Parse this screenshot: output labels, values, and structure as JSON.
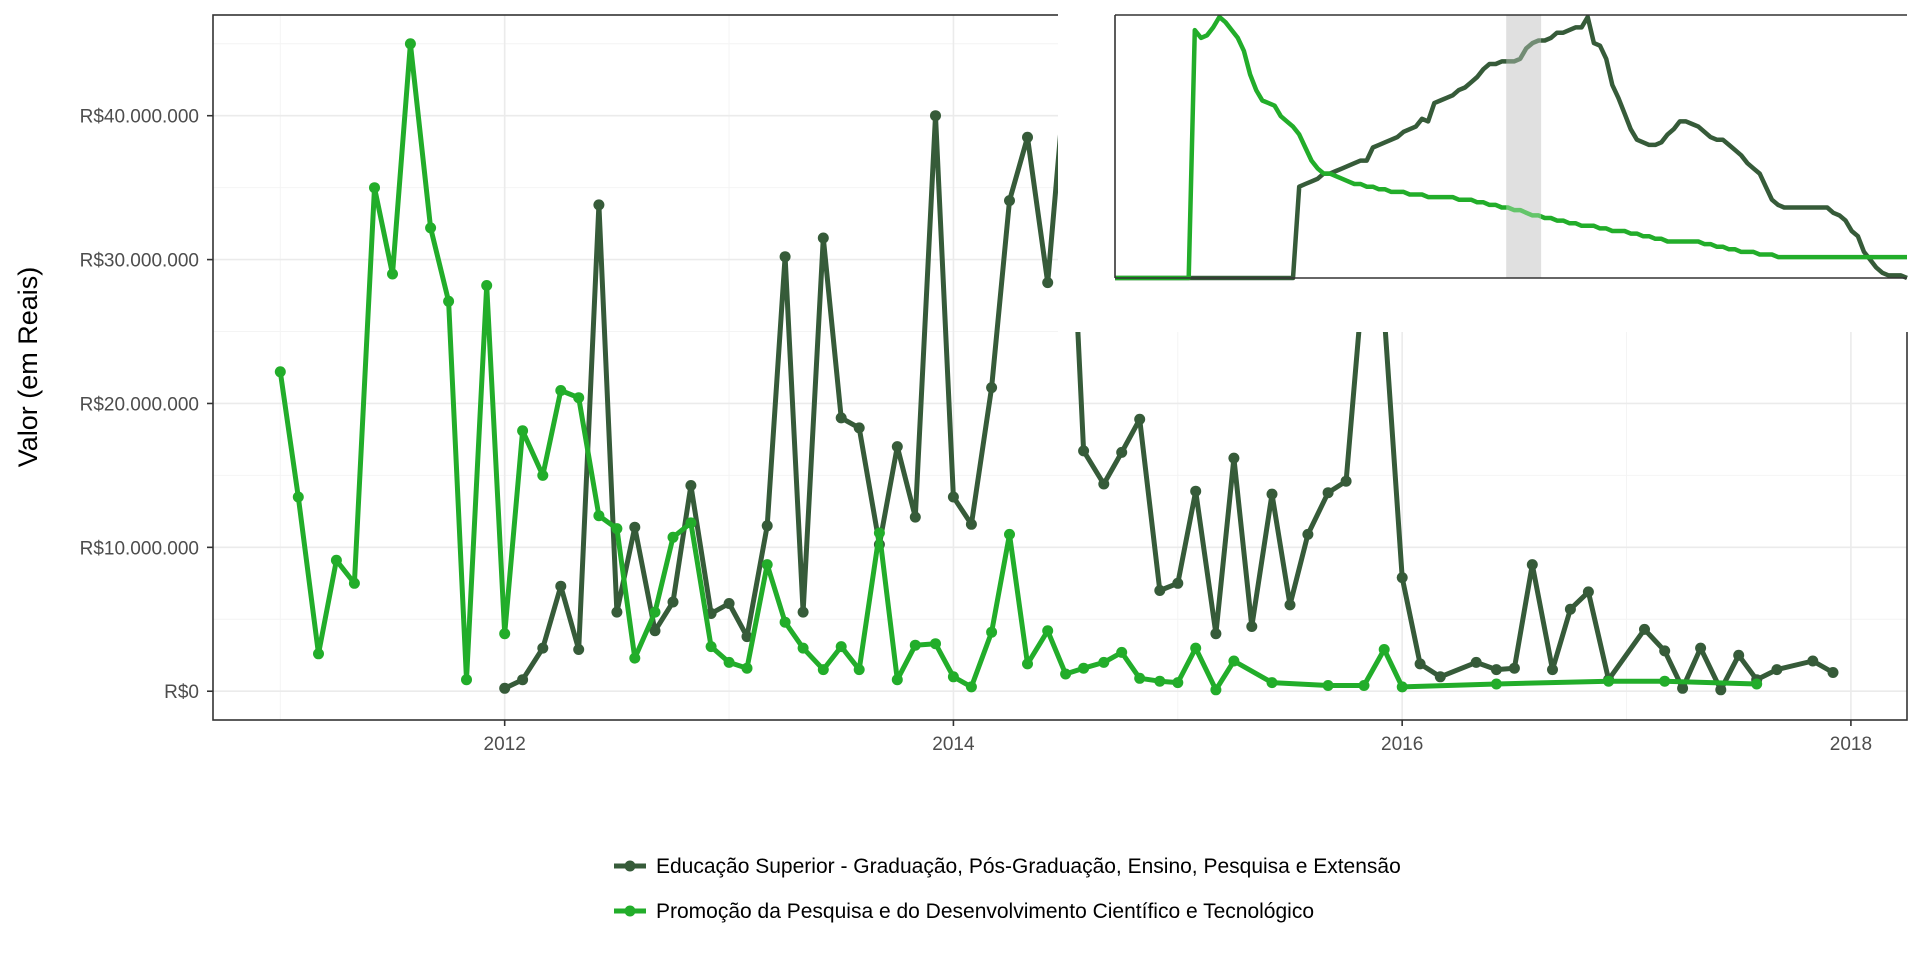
{
  "chart_data": [
    {
      "type": "line",
      "title": "",
      "xlabel": "",
      "ylabel": "Valor (em Reais)",
      "x_tick_labels": [
        "2012",
        "2014",
        "2016",
        "2018"
      ],
      "x_tick_dates": [
        2012.0,
        2014.0,
        2016.0,
        2018.0
      ],
      "y_tick_labels": [
        "R$0",
        "R$10.000.000",
        "R$20.000.000",
        "R$30.000.000",
        "R$40.000.000"
      ],
      "y_tick_values": [
        0,
        10000000,
        20000000,
        30000000,
        40000000
      ],
      "xlim": [
        2010.7,
        2018.25
      ],
      "ylim": [
        -2000000,
        47000000
      ],
      "grid": true,
      "legend_position": "bottom",
      "series": [
        {
          "name": "Educação Superior - Graduação, Pós-Graduação, Ensino, Pesquisa e Extensão",
          "color": "#365b39",
          "points": [
            [
              2012.0,
              200000
            ],
            [
              2012.08,
              800000
            ],
            [
              2012.17,
              3000000
            ],
            [
              2012.25,
              7300000
            ],
            [
              2012.33,
              2900000
            ],
            [
              2012.42,
              33800000
            ],
            [
              2012.5,
              5500000
            ],
            [
              2012.58,
              11400000
            ],
            [
              2012.67,
              4200000
            ],
            [
              2012.75,
              6200000
            ],
            [
              2012.83,
              14300000
            ],
            [
              2012.92,
              5400000
            ],
            [
              2013.0,
              6100000
            ],
            [
              2013.08,
              3800000
            ],
            [
              2013.17,
              11500000
            ],
            [
              2013.25,
              30200000
            ],
            [
              2013.33,
              5500000
            ],
            [
              2013.42,
              31500000
            ],
            [
              2013.5,
              19000000
            ],
            [
              2013.58,
              18300000
            ],
            [
              2013.67,
              10200000
            ],
            [
              2013.75,
              17000000
            ],
            [
              2013.83,
              12100000
            ],
            [
              2013.92,
              40000000
            ],
            [
              2014.0,
              13500000
            ],
            [
              2014.08,
              11600000
            ],
            [
              2014.17,
              21100000
            ],
            [
              2014.25,
              34100000
            ],
            [
              2014.33,
              38500000
            ],
            [
              2014.42,
              28400000
            ],
            [
              2014.5,
              42800000
            ],
            [
              2014.58,
              16700000
            ],
            [
              2014.67,
              14400000
            ],
            [
              2014.75,
              16600000
            ],
            [
              2014.83,
              18900000
            ],
            [
              2014.92,
              7000000
            ],
            [
              2015.0,
              7500000
            ],
            [
              2015.08,
              13900000
            ],
            [
              2015.17,
              4000000
            ],
            [
              2015.25,
              16200000
            ],
            [
              2015.33,
              4500000
            ],
            [
              2015.42,
              13700000
            ],
            [
              2015.5,
              6000000
            ],
            [
              2015.58,
              10900000
            ],
            [
              2015.67,
              13800000
            ],
            [
              2015.75,
              14600000
            ],
            [
              2015.83,
              29200000
            ],
            [
              2015.92,
              26200000
            ],
            [
              2016.0,
              7900000
            ],
            [
              2016.08,
              1900000
            ],
            [
              2016.17,
              1000000
            ],
            [
              2016.33,
              2000000
            ],
            [
              2016.42,
              1500000
            ],
            [
              2016.5,
              1600000
            ],
            [
              2016.58,
              8800000
            ],
            [
              2016.67,
              1500000
            ],
            [
              2016.75,
              5700000
            ],
            [
              2016.83,
              6900000
            ],
            [
              2016.92,
              800000
            ],
            [
              2017.08,
              4300000
            ],
            [
              2017.17,
              2800000
            ],
            [
              2017.25,
              200000
            ],
            [
              2017.33,
              3000000
            ],
            [
              2017.42,
              100000
            ],
            [
              2017.5,
              2500000
            ],
            [
              2017.58,
              800000
            ],
            [
              2017.67,
              1500000
            ],
            [
              2017.83,
              2100000
            ],
            [
              2017.92,
              1300000
            ]
          ]
        },
        {
          "name": "Promoção da Pesquisa e do Desenvolvimento Científico e Tecnológico",
          "color": "#22ad2a",
          "points": [
            [
              2011.0,
              22200000
            ],
            [
              2011.08,
              13500000
            ],
            [
              2011.17,
              2600000
            ],
            [
              2011.25,
              9100000
            ],
            [
              2011.33,
              7500000
            ],
            [
              2011.42,
              35000000
            ],
            [
              2011.5,
              29000000
            ],
            [
              2011.58,
              45000000
            ],
            [
              2011.67,
              32200000
            ],
            [
              2011.75,
              27100000
            ],
            [
              2011.83,
              800000
            ],
            [
              2011.92,
              28200000
            ],
            [
              2012.0,
              4000000
            ],
            [
              2012.08,
              18100000
            ],
            [
              2012.17,
              15000000
            ],
            [
              2012.25,
              20900000
            ],
            [
              2012.33,
              20400000
            ],
            [
              2012.42,
              12200000
            ],
            [
              2012.5,
              11300000
            ],
            [
              2012.58,
              2300000
            ],
            [
              2012.67,
              5500000
            ],
            [
              2012.75,
              10700000
            ],
            [
              2012.83,
              11700000
            ],
            [
              2012.92,
              3100000
            ],
            [
              2013.0,
              2000000
            ],
            [
              2013.08,
              1600000
            ],
            [
              2013.17,
              8800000
            ],
            [
              2013.25,
              4800000
            ],
            [
              2013.33,
              3000000
            ],
            [
              2013.42,
              1500000
            ],
            [
              2013.5,
              3100000
            ],
            [
              2013.58,
              1500000
            ],
            [
              2013.67,
              11000000
            ],
            [
              2013.75,
              800000
            ],
            [
              2013.83,
              3200000
            ],
            [
              2013.92,
              3300000
            ],
            [
              2014.0,
              1000000
            ],
            [
              2014.08,
              300000
            ],
            [
              2014.17,
              4100000
            ],
            [
              2014.25,
              10900000
            ],
            [
              2014.33,
              1900000
            ],
            [
              2014.42,
              4200000
            ],
            [
              2014.5,
              1200000
            ],
            [
              2014.58,
              1600000
            ],
            [
              2014.67,
              2000000
            ],
            [
              2014.75,
              2700000
            ],
            [
              2014.83,
              900000
            ],
            [
              2014.92,
              700000
            ],
            [
              2015.0,
              600000
            ],
            [
              2015.08,
              3000000
            ],
            [
              2015.17,
              100000
            ],
            [
              2015.25,
              2100000
            ],
            [
              2015.42,
              600000
            ],
            [
              2015.67,
              400000
            ],
            [
              2015.83,
              400000
            ],
            [
              2015.92,
              2900000
            ],
            [
              2016.0,
              300000
            ],
            [
              2016.42,
              500000
            ],
            [
              2016.92,
              700000
            ],
            [
              2017.17,
              700000
            ],
            [
              2017.58,
              500000
            ]
          ]
        }
      ]
    },
    {
      "type": "line",
      "title": "",
      "xlabel": "",
      "ylabel": "",
      "grid": false,
      "highlight_band_present": true,
      "series": [
        {
          "name": "Educação Superior - Graduação, Pós-Graduação, Ensino, Pesquisa e Extensão",
          "color": "#365b39",
          "values": [
            0,
            0,
            0,
            0,
            0,
            0,
            0,
            0,
            0,
            0,
            0,
            0,
            0,
            0,
            0,
            0,
            0,
            0,
            0,
            0,
            0,
            0,
            0,
            0,
            0,
            0,
            0,
            0,
            0,
            0,
            35,
            36,
            37,
            38,
            40,
            40,
            41,
            42,
            43,
            44,
            45,
            45,
            50,
            51,
            52,
            53,
            54,
            56,
            57,
            58,
            61,
            60,
            67,
            68,
            69,
            70,
            72,
            73,
            75,
            77,
            80,
            82,
            82,
            83,
            83,
            83,
            84,
            88,
            90,
            91,
            91,
            92,
            94,
            94,
            95,
            96,
            96,
            100,
            90,
            89,
            84,
            74,
            69,
            63,
            57,
            53,
            52,
            51,
            51,
            52,
            55,
            57,
            60,
            60,
            59,
            58,
            56,
            54,
            53,
            53,
            51,
            49,
            47,
            44,
            42,
            40,
            35,
            30,
            28,
            27,
            27,
            27,
            27,
            27,
            27,
            27,
            27,
            25,
            24,
            22,
            18,
            16,
            10,
            7,
            4,
            2,
            1,
            1,
            1,
            0
          ]
        },
        {
          "name": "Promoção da Pesquisa e do Desenvolvimento Científico e Tecnológico",
          "color": "#22ad2a",
          "values": [
            0,
            0,
            0,
            0,
            0,
            0,
            0,
            0,
            0,
            0,
            0,
            0,
            0,
            95,
            92,
            93,
            96,
            100,
            98,
            95,
            92,
            87,
            78,
            72,
            68,
            67,
            66,
            62,
            60,
            58,
            55,
            50,
            45,
            42,
            40,
            40,
            39,
            38,
            37,
            36,
            36,
            35,
            35,
            34,
            34,
            33,
            33,
            33,
            32,
            32,
            32,
            31,
            31,
            31,
            31,
            31,
            30,
            30,
            30,
            29,
            29,
            28,
            28,
            27,
            27,
            26,
            26,
            25,
            24,
            24,
            23,
            23,
            22,
            22,
            21,
            21,
            20,
            20,
            20,
            19,
            19,
            18,
            18,
            18,
            17,
            17,
            16,
            16,
            15,
            15,
            14,
            14,
            14,
            14,
            14,
            14,
            13,
            13,
            12,
            12,
            11,
            11,
            10,
            10,
            10,
            9,
            9,
            9,
            8,
            8,
            8,
            8,
            8,
            8,
            8,
            8,
            8,
            8,
            8,
            8,
            8,
            8,
            8,
            8,
            8,
            8,
            8,
            8,
            8,
            8
          ]
        }
      ]
    }
  ]
}
